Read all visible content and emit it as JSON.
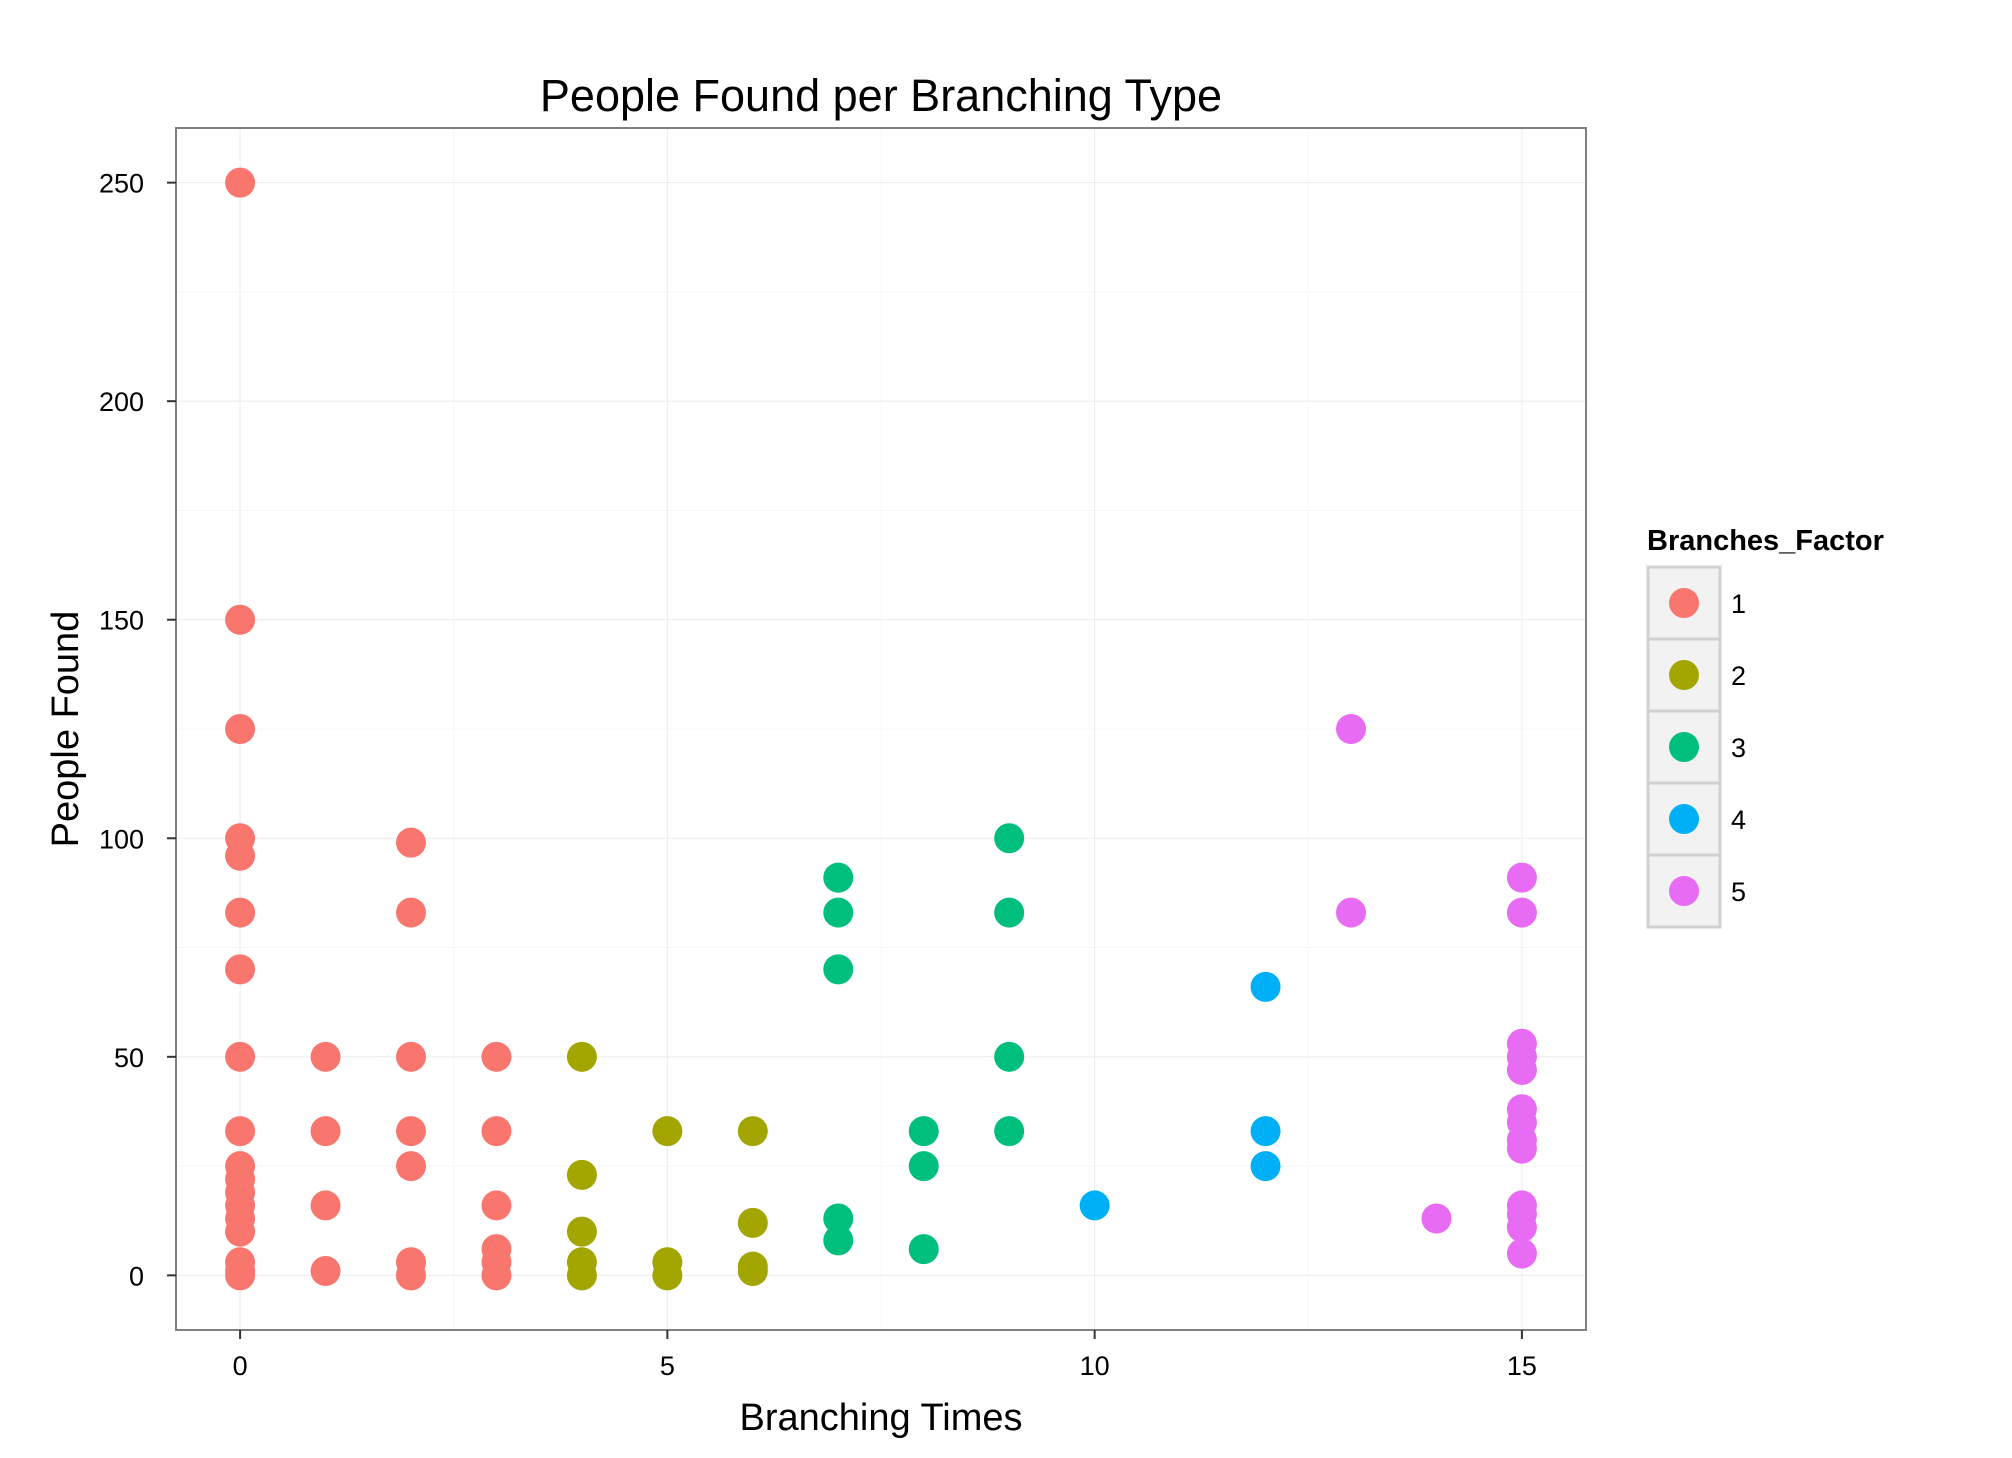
{
  "chart_data": {
    "type": "scatter",
    "title": "People Found per Branching Type",
    "xlabel": "Branching Times",
    "ylabel": "People Found",
    "xlim": [
      -0.75,
      15.75
    ],
    "ylim": [
      -12.5,
      262.5
    ],
    "x_ticks": [
      0,
      5,
      10,
      15
    ],
    "x_tick_labels": [
      "0",
      "5",
      "10",
      "15"
    ],
    "y_ticks": [
      0,
      50,
      100,
      150,
      200,
      250
    ],
    "y_tick_labels": [
      "0",
      "50",
      "100",
      "150",
      "200",
      "250"
    ],
    "grid": true,
    "legend": {
      "title": "Branches_Factor",
      "position": "right"
    },
    "series": [
      {
        "name": "1",
        "color": "#F8766D",
        "points": [
          [
            0,
            250
          ],
          [
            0,
            150
          ],
          [
            0,
            125
          ],
          [
            0,
            100
          ],
          [
            0,
            96
          ],
          [
            0,
            83
          ],
          [
            0,
            70
          ],
          [
            0,
            50
          ],
          [
            0,
            33
          ],
          [
            0,
            25
          ],
          [
            0,
            22
          ],
          [
            0,
            19
          ],
          [
            0,
            16
          ],
          [
            0,
            13
          ],
          [
            0,
            10
          ],
          [
            0,
            3
          ],
          [
            0,
            1
          ],
          [
            0,
            0
          ],
          [
            1,
            50
          ],
          [
            1,
            33
          ],
          [
            1,
            16
          ],
          [
            1,
            1
          ],
          [
            2,
            99
          ],
          [
            2,
            83
          ],
          [
            2,
            50
          ],
          [
            2,
            33
          ],
          [
            2,
            25
          ],
          [
            2,
            3
          ],
          [
            2,
            0
          ],
          [
            3,
            50
          ],
          [
            3,
            33
          ],
          [
            3,
            16
          ],
          [
            3,
            6
          ],
          [
            3,
            3
          ],
          [
            3,
            0
          ]
        ]
      },
      {
        "name": "2",
        "color": "#A3A500",
        "points": [
          [
            4,
            50
          ],
          [
            4,
            23
          ],
          [
            4,
            10
          ],
          [
            4,
            3
          ],
          [
            4,
            0
          ],
          [
            5,
            33
          ],
          [
            5,
            3
          ],
          [
            5,
            0
          ],
          [
            6,
            33
          ],
          [
            6,
            12
          ],
          [
            6,
            2
          ],
          [
            6,
            1
          ]
        ]
      },
      {
        "name": "3",
        "color": "#00BF7D",
        "points": [
          [
            7,
            91
          ],
          [
            7,
            83
          ],
          [
            7,
            70
          ],
          [
            7,
            13
          ],
          [
            7,
            8
          ],
          [
            8,
            33
          ],
          [
            8,
            25
          ],
          [
            8,
            6
          ],
          [
            9,
            100
          ],
          [
            9,
            83
          ],
          [
            9,
            50
          ],
          [
            9,
            33
          ]
        ]
      },
      {
        "name": "4",
        "color": "#00B0F6",
        "points": [
          [
            10,
            16
          ],
          [
            12,
            66
          ],
          [
            12,
            33
          ],
          [
            12,
            25
          ]
        ]
      },
      {
        "name": "5",
        "color": "#E76BF3",
        "points": [
          [
            13,
            125
          ],
          [
            13,
            83
          ],
          [
            14,
            13
          ],
          [
            15,
            91
          ],
          [
            15,
            83
          ],
          [
            15,
            53
          ],
          [
            15,
            50
          ],
          [
            15,
            47
          ],
          [
            15,
            38
          ],
          [
            15,
            35
          ],
          [
            15,
            31
          ],
          [
            15,
            29
          ],
          [
            15,
            16
          ],
          [
            15,
            14
          ],
          [
            15,
            11
          ],
          [
            15,
            5
          ]
        ]
      }
    ]
  }
}
